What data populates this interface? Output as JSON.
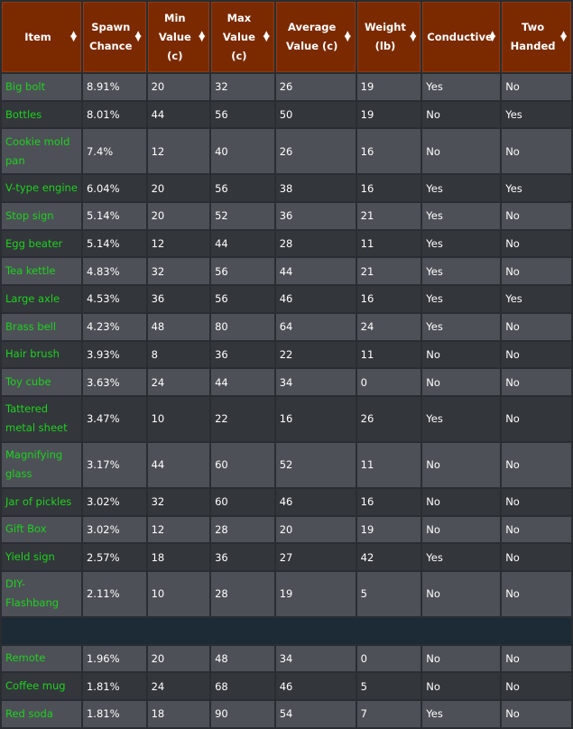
{
  "table": {
    "headers": {
      "item": "Item",
      "spawn": "Spawn Chance",
      "min": "Min Value (c)",
      "max": "Max Value (c)",
      "avg": "Average Value (c)",
      "weight": "Weight (lb)",
      "conductive": "Conductive",
      "two_handed": "Two Handed"
    },
    "rows": [
      {
        "item": "Big bolt",
        "spawn": "8.91%",
        "min": "20",
        "max": "32",
        "avg": "26",
        "weight": "19",
        "conductive": "Yes",
        "two_handed": "No"
      },
      {
        "item": "Bottles",
        "spawn": "8.01%",
        "min": "44",
        "max": "56",
        "avg": "50",
        "weight": "19",
        "conductive": "No",
        "two_handed": "Yes"
      },
      {
        "item": "Cookie mold pan",
        "spawn": "7.4%",
        "min": "12",
        "max": "40",
        "avg": "26",
        "weight": "16",
        "conductive": "No",
        "two_handed": "No"
      },
      {
        "item": "V-type engine",
        "spawn": "6.04%",
        "min": "20",
        "max": "56",
        "avg": "38",
        "weight": "16",
        "conductive": "Yes",
        "two_handed": "Yes"
      },
      {
        "item": "Stop sign",
        "spawn": "5.14%",
        "min": "20",
        "max": "52",
        "avg": "36",
        "weight": "21",
        "conductive": "Yes",
        "two_handed": "No"
      },
      {
        "item": "Egg beater",
        "spawn": "5.14%",
        "min": "12",
        "max": "44",
        "avg": "28",
        "weight": "11",
        "conductive": "Yes",
        "two_handed": "No"
      },
      {
        "item": "Tea kettle",
        "spawn": "4.83%",
        "min": "32",
        "max": "56",
        "avg": "44",
        "weight": "21",
        "conductive": "Yes",
        "two_handed": "No"
      },
      {
        "item": "Large axle",
        "spawn": "4.53%",
        "min": "36",
        "max": "56",
        "avg": "46",
        "weight": "16",
        "conductive": "Yes",
        "two_handed": "Yes"
      },
      {
        "item": "Brass bell",
        "spawn": "4.23%",
        "min": "48",
        "max": "80",
        "avg": "64",
        "weight": "24",
        "conductive": "Yes",
        "two_handed": "No"
      },
      {
        "item": "Hair brush",
        "spawn": "3.93%",
        "min": "8",
        "max": "36",
        "avg": "22",
        "weight": "11",
        "conductive": "No",
        "two_handed": "No"
      },
      {
        "item": "Toy cube",
        "spawn": "3.63%",
        "min": "24",
        "max": "44",
        "avg": "34",
        "weight": "0",
        "conductive": "No",
        "two_handed": "No"
      },
      {
        "item": "Tattered metal sheet",
        "spawn": "3.47%",
        "min": "10",
        "max": "22",
        "avg": "16",
        "weight": "26",
        "conductive": "Yes",
        "two_handed": "No"
      },
      {
        "item": "Magnifying glass",
        "spawn": "3.17%",
        "min": "44",
        "max": "60",
        "avg": "52",
        "weight": "11",
        "conductive": "No",
        "two_handed": "No"
      },
      {
        "item": "Jar of pickles",
        "spawn": "3.02%",
        "min": "32",
        "max": "60",
        "avg": "46",
        "weight": "16",
        "conductive": "No",
        "two_handed": "No"
      },
      {
        "item": "Gift Box",
        "spawn": "3.02%",
        "min": "12",
        "max": "28",
        "avg": "20",
        "weight": "19",
        "conductive": "No",
        "two_handed": "No"
      },
      {
        "item": "Yield sign",
        "spawn": "2.57%",
        "min": "18",
        "max": "36",
        "avg": "27",
        "weight": "42",
        "conductive": "Yes",
        "two_handed": "No"
      },
      {
        "item": "DIY-Flashbang",
        "spawn": "2.11%",
        "min": "10",
        "max": "28",
        "avg": "19",
        "weight": "5",
        "conductive": "No",
        "two_handed": "No"
      },
      {
        "item": "Remote",
        "spawn": "1.96%",
        "min": "20",
        "max": "48",
        "avg": "34",
        "weight": "0",
        "conductive": "No",
        "two_handed": "No"
      },
      {
        "item": "Coffee mug",
        "spawn": "1.81%",
        "min": "24",
        "max": "68",
        "avg": "46",
        "weight": "5",
        "conductive": "No",
        "two_handed": "No"
      },
      {
        "item": "Red soda",
        "spawn": "1.81%",
        "min": "18",
        "max": "90",
        "avg": "54",
        "weight": "7",
        "conductive": "Yes",
        "two_handed": "No"
      }
    ]
  },
  "colors": {
    "header_bg": "#7b2a00",
    "item_text": "#1ed21e",
    "row_light": "#50545a",
    "row_dark": "#34373c"
  },
  "icons": {
    "sort": "sort-arrows-icon"
  }
}
